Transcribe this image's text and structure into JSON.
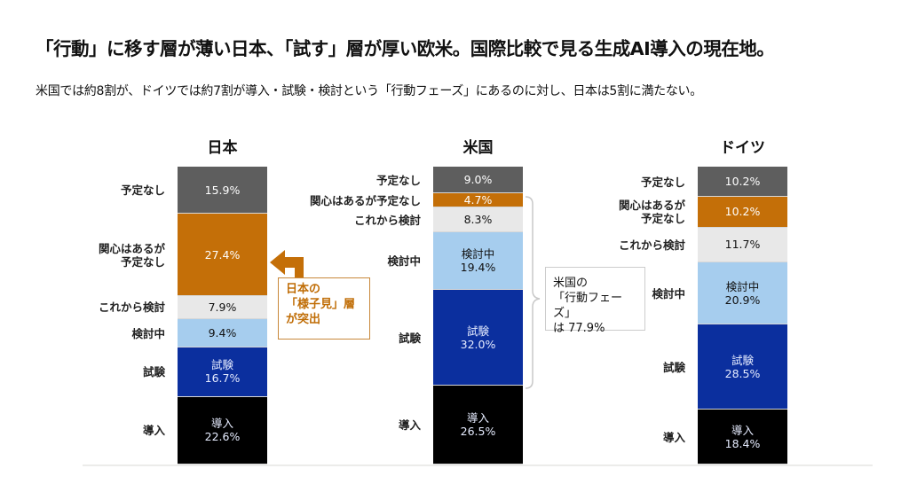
{
  "title": "「行動」に移す層が薄い日本、「試す」層が厚い欧米。国際比較で見る生成AI導入の現在地。",
  "subtitle": "米国では約8割が、ドイツでは約7割が導入・試験・検討という「行動フェーズ」にあるのに対し、日本は5割に満たない。",
  "chart_data": {
    "type": "bar",
    "stacked": true,
    "unit": "%",
    "categories": [
      "日本",
      "米国",
      "ドイツ"
    ],
    "series_order_top_to_bottom": [
      "予定なし",
      "関心はあるが予定なし",
      "これから検討",
      "検討中",
      "試験",
      "導入"
    ],
    "series": [
      {
        "name": "予定なし",
        "color": "#5e5e5e",
        "values": [
          15.9,
          9.0,
          10.2
        ],
        "labels": [
          "15.9%",
          "9.0%",
          "10.2%"
        ]
      },
      {
        "name": "関心はあるが予定なし",
        "color": "#c46f08",
        "values": [
          27.4,
          4.7,
          10.2
        ],
        "labels": [
          "27.4%",
          "4.7%",
          "10.2%"
        ]
      },
      {
        "name": "これから検討",
        "color": "#e8e8e8",
        "values": [
          7.9,
          8.3,
          11.7
        ],
        "labels": [
          "7.9%",
          "8.3%",
          "11.7%"
        ]
      },
      {
        "name": "検討中",
        "color": "#a6cdee",
        "values": [
          9.4,
          19.4,
          20.9
        ],
        "labels": [
          "9.4%",
          "19.4%",
          "20.9%"
        ]
      },
      {
        "name": "試験",
        "color": "#0b2f9e",
        "values": [
          16.7,
          32.0,
          28.5
        ],
        "labels": [
          "16.7%",
          "32.0%",
          "28.5%"
        ]
      },
      {
        "name": "導入",
        "color": "#000000",
        "values": [
          22.6,
          26.5,
          18.4
        ],
        "labels": [
          "22.6%",
          "26.5%",
          "18.4%"
        ]
      }
    ],
    "category_labels": {
      "日本": [
        "予定なし",
        "関心はあるが\n予定なし",
        "これから検討",
        "検討中",
        "試験",
        "導入"
      ],
      "米国": [
        "予定なし",
        "関心はあるが予定なし",
        "これから検討",
        "検討中",
        "試験",
        "導入"
      ],
      "ドイツ": [
        "予定なし",
        "関心はあるが\n予定なし",
        "これから検討",
        "検討中",
        "試験",
        "導入"
      ]
    },
    "inner_names": {
      "日本": [
        null,
        null,
        null,
        null,
        "試験",
        "導入"
      ],
      "米国": [
        null,
        null,
        null,
        "検討中",
        "試験",
        "導入"
      ],
      "ドイツ": [
        null,
        null,
        null,
        "検討中",
        "試験",
        "導入"
      ]
    },
    "annotations": [
      {
        "text": "日本の\n「様子見」層\nが突出",
        "target": "日本 / 関心はあるが予定なし",
        "color": "#c06d06"
      },
      {
        "text": "米国の\n「行動フェーズ」\nは 77.9%",
        "target": "米国 / 関心はあるが予定なし〜試験"
      }
    ]
  }
}
